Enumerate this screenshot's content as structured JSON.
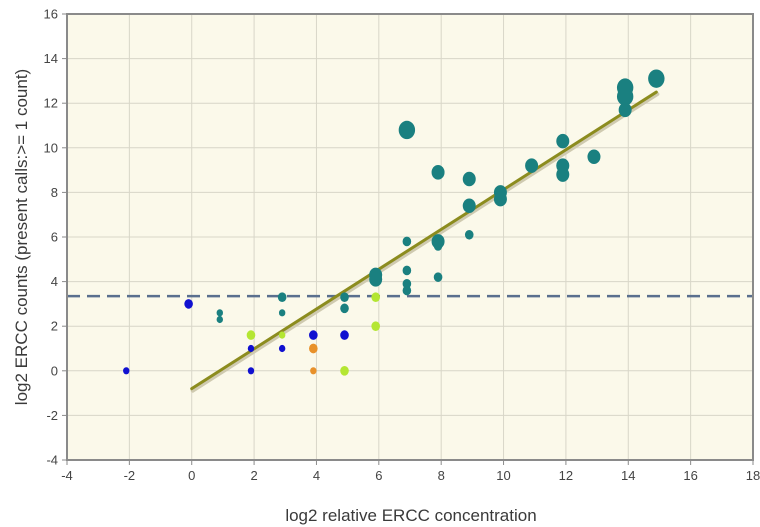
{
  "chart_data": {
    "type": "scatter",
    "title": "",
    "xlabel": "log2 relative ERCC concentration",
    "ylabel": "log2 ERCC counts (present calls:>= 1 count)",
    "xlim": [
      -4,
      18
    ],
    "ylim": [
      -4,
      16
    ],
    "x_ticks": [
      "-4",
      "-2",
      "0",
      "2",
      "4",
      "6",
      "8",
      "10",
      "12",
      "14",
      "16",
      "18"
    ],
    "y_ticks": [
      "-4",
      "-2",
      "0",
      "2",
      "4",
      "6",
      "8",
      "10",
      "12",
      "14",
      "16"
    ],
    "grid": true,
    "legend": "none",
    "colors": {
      "background": "#fbf9ea",
      "grid": "#d8d6c8",
      "frame": "#8a8a8a",
      "fit_line": "#8c8c1e",
      "threshold": "#5a6f8e",
      "teal": "#1a8080",
      "blue": "#1010d0",
      "yellow_green": "#b4e632",
      "orange": "#e8912a"
    },
    "threshold_line": {
      "y": 3.35,
      "style": "dashed"
    },
    "fit_line": {
      "x": [
        0,
        14.9
      ],
      "y": [
        -0.8,
        12.5
      ]
    },
    "points": [
      {
        "x": -2.1,
        "y": 0.0,
        "size": 1,
        "color": "blue"
      },
      {
        "x": -0.1,
        "y": 3.0,
        "size": 2,
        "color": "blue"
      },
      {
        "x": 0.9,
        "y": 2.6,
        "size": 1,
        "color": "teal"
      },
      {
        "x": 0.9,
        "y": 2.3,
        "size": 1,
        "color": "teal"
      },
      {
        "x": 1.9,
        "y": 1.6,
        "size": 2,
        "color": "yellow_green"
      },
      {
        "x": 1.9,
        "y": 1.0,
        "size": 1,
        "color": "blue"
      },
      {
        "x": 1.9,
        "y": 0.0,
        "size": 1,
        "color": "blue"
      },
      {
        "x": 2.9,
        "y": 3.3,
        "size": 2,
        "color": "teal"
      },
      {
        "x": 2.9,
        "y": 2.6,
        "size": 1,
        "color": "teal"
      },
      {
        "x": 2.9,
        "y": 1.6,
        "size": 1,
        "color": "yellow_green"
      },
      {
        "x": 2.9,
        "y": 1.0,
        "size": 1,
        "color": "blue"
      },
      {
        "x": 3.9,
        "y": 1.6,
        "size": 2,
        "color": "blue"
      },
      {
        "x": 3.9,
        "y": 1.0,
        "size": 2,
        "color": "orange"
      },
      {
        "x": 3.9,
        "y": 0.0,
        "size": 1,
        "color": "orange"
      },
      {
        "x": 4.9,
        "y": 3.3,
        "size": 2,
        "color": "teal"
      },
      {
        "x": 4.9,
        "y": 2.8,
        "size": 2,
        "color": "teal"
      },
      {
        "x": 4.9,
        "y": 1.6,
        "size": 2,
        "color": "blue"
      },
      {
        "x": 4.9,
        "y": 0.0,
        "size": 2,
        "color": "yellow_green"
      },
      {
        "x": 5.9,
        "y": 4.3,
        "size": 3,
        "color": "teal"
      },
      {
        "x": 5.9,
        "y": 4.1,
        "size": 3,
        "color": "teal"
      },
      {
        "x": 5.9,
        "y": 3.3,
        "size": 2,
        "color": "yellow_green"
      },
      {
        "x": 5.9,
        "y": 2.0,
        "size": 2,
        "color": "yellow_green"
      },
      {
        "x": 6.9,
        "y": 10.8,
        "size": 4,
        "color": "teal"
      },
      {
        "x": 6.9,
        "y": 5.8,
        "size": 2,
        "color": "teal"
      },
      {
        "x": 6.9,
        "y": 4.5,
        "size": 2,
        "color": "teal"
      },
      {
        "x": 6.9,
        "y": 3.9,
        "size": 2,
        "color": "teal"
      },
      {
        "x": 6.9,
        "y": 3.6,
        "size": 2,
        "color": "teal"
      },
      {
        "x": 7.9,
        "y": 8.9,
        "size": 3,
        "color": "teal"
      },
      {
        "x": 7.9,
        "y": 5.8,
        "size": 3,
        "color": "teal"
      },
      {
        "x": 7.9,
        "y": 5.6,
        "size": 2,
        "color": "teal"
      },
      {
        "x": 7.9,
        "y": 4.2,
        "size": 2,
        "color": "teal"
      },
      {
        "x": 8.9,
        "y": 8.6,
        "size": 3,
        "color": "teal"
      },
      {
        "x": 8.9,
        "y": 7.4,
        "size": 3,
        "color": "teal"
      },
      {
        "x": 8.9,
        "y": 6.1,
        "size": 2,
        "color": "teal"
      },
      {
        "x": 9.9,
        "y": 8.0,
        "size": 3,
        "color": "teal"
      },
      {
        "x": 9.9,
        "y": 7.7,
        "size": 3,
        "color": "teal"
      },
      {
        "x": 10.9,
        "y": 9.2,
        "size": 3,
        "color": "teal"
      },
      {
        "x": 11.9,
        "y": 10.3,
        "size": 3,
        "color": "teal"
      },
      {
        "x": 11.9,
        "y": 9.2,
        "size": 3,
        "color": "teal"
      },
      {
        "x": 11.9,
        "y": 8.8,
        "size": 3,
        "color": "teal"
      },
      {
        "x": 12.9,
        "y": 9.6,
        "size": 3,
        "color": "teal"
      },
      {
        "x": 13.9,
        "y": 12.7,
        "size": 4,
        "color": "teal"
      },
      {
        "x": 13.9,
        "y": 12.3,
        "size": 4,
        "color": "teal"
      },
      {
        "x": 13.9,
        "y": 11.7,
        "size": 3,
        "color": "teal"
      },
      {
        "x": 14.9,
        "y": 13.1,
        "size": 4,
        "color": "teal"
      }
    ]
  }
}
